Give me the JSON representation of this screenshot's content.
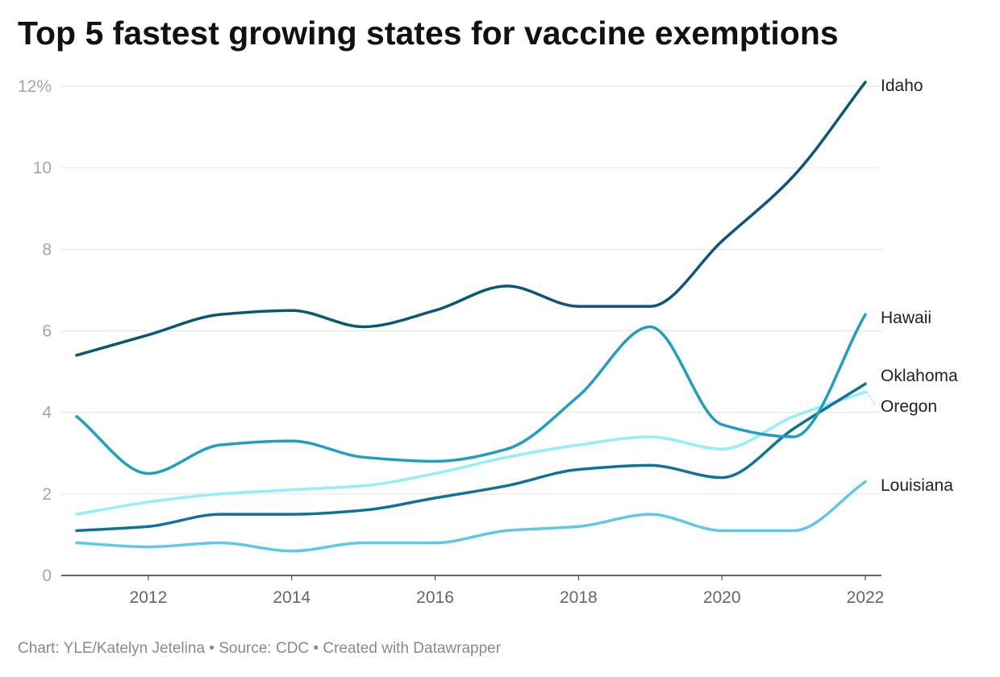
{
  "chart_data": {
    "type": "line",
    "title": "Top 5 fastest growing states for vaccine exemptions",
    "xlabel": "",
    "ylabel": "",
    "x": [
      2011,
      2012,
      2013,
      2014,
      2015,
      2016,
      2017,
      2018,
      2019,
      2020,
      2021,
      2022
    ],
    "xlim": [
      2011,
      2022
    ],
    "xticks": [
      "2012",
      "2014",
      "2016",
      "2018",
      "2020",
      "2022"
    ],
    "ylim": [
      0,
      12
    ],
    "yticks": [
      "0",
      "2",
      "4",
      "6",
      "8",
      "10",
      "12%"
    ],
    "grid": true,
    "legend": "direct-labels-right",
    "series": [
      {
        "name": "Idaho",
        "color": "#0b5777",
        "values": [
          5.4,
          5.9,
          6.4,
          6.5,
          6.1,
          6.5,
          7.1,
          6.6,
          6.6,
          8.2,
          9.8,
          12.1
        ]
      },
      {
        "name": "Hawaii",
        "color": "#1f9ec4",
        "values": [
          3.9,
          2.5,
          3.2,
          3.3,
          2.9,
          2.8,
          3.1,
          4.4,
          6.1,
          3.7,
          3.4,
          6.4
        ]
      },
      {
        "name": "Oklahoma",
        "color": "#0e7399",
        "values": [
          1.1,
          1.2,
          1.5,
          1.5,
          1.6,
          1.9,
          2.2,
          2.6,
          2.7,
          2.4,
          3.6,
          4.7
        ]
      },
      {
        "name": "Oregon",
        "color": "#92eefb",
        "values": [
          1.5,
          1.8,
          2.0,
          2.1,
          2.2,
          2.5,
          2.9,
          3.2,
          3.4,
          3.1,
          3.9,
          4.5
        ]
      },
      {
        "name": "Louisiana",
        "color": "#5ec8ea",
        "values": [
          0.8,
          0.7,
          0.8,
          0.6,
          0.8,
          0.8,
          1.1,
          1.2,
          1.5,
          1.1,
          1.1,
          2.3
        ]
      }
    ]
  },
  "footer": "Chart: YLE/Katelyn Jetelina • Source: CDC • Created with Datawrapper"
}
